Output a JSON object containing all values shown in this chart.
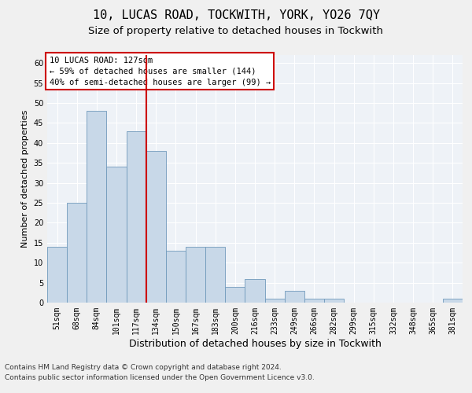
{
  "title1": "10, LUCAS ROAD, TOCKWITH, YORK, YO26 7QY",
  "title2": "Size of property relative to detached houses in Tockwith",
  "xlabel": "Distribution of detached houses by size in Tockwith",
  "ylabel": "Number of detached properties",
  "categories": [
    "51sqm",
    "68sqm",
    "84sqm",
    "101sqm",
    "117sqm",
    "134sqm",
    "150sqm",
    "167sqm",
    "183sqm",
    "200sqm",
    "216sqm",
    "233sqm",
    "249sqm",
    "266sqm",
    "282sqm",
    "299sqm",
    "315sqm",
    "332sqm",
    "348sqm",
    "365sqm",
    "381sqm"
  ],
  "values": [
    14,
    25,
    48,
    34,
    43,
    38,
    13,
    14,
    14,
    4,
    6,
    1,
    3,
    1,
    1,
    0,
    0,
    0,
    0,
    0,
    1
  ],
  "bar_color": "#c8d8e8",
  "bar_edge_color": "#7099bb",
  "vline_color": "#cc0000",
  "vline_x": 4.5,
  "ylim": [
    0,
    62
  ],
  "yticks": [
    0,
    5,
    10,
    15,
    20,
    25,
    30,
    35,
    40,
    45,
    50,
    55,
    60
  ],
  "annotation_title": "10 LUCAS ROAD: 127sqm",
  "annotation_line1": "← 59% of detached houses are smaller (144)",
  "annotation_line2": "40% of semi-detached houses are larger (99) →",
  "annotation_box_color": "#ffffff",
  "annotation_box_edge": "#cc0000",
  "footnote1": "Contains HM Land Registry data © Crown copyright and database right 2024.",
  "footnote2": "Contains public sector information licensed under the Open Government Licence v3.0.",
  "bg_color": "#eef2f7",
  "grid_color": "#ffffff",
  "title1_fontsize": 11,
  "title2_fontsize": 9.5,
  "xlabel_fontsize": 9,
  "ylabel_fontsize": 8,
  "tick_fontsize": 7,
  "annotation_fontsize": 7.5,
  "footnote_fontsize": 6.5
}
